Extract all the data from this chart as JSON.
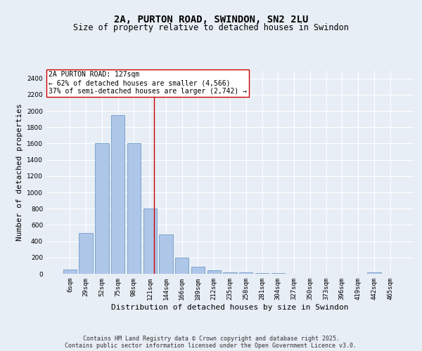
{
  "title1": "2A, PURTON ROAD, SWINDON, SN2 2LU",
  "title2": "Size of property relative to detached houses in Swindon",
  "xlabel": "Distribution of detached houses by size in Swindon",
  "ylabel": "Number of detached properties",
  "categories": [
    "6sqm",
    "29sqm",
    "52sqm",
    "75sqm",
    "98sqm",
    "121sqm",
    "144sqm",
    "166sqm",
    "189sqm",
    "212sqm",
    "235sqm",
    "258sqm",
    "281sqm",
    "304sqm",
    "327sqm",
    "350sqm",
    "373sqm",
    "396sqm",
    "419sqm",
    "442sqm",
    "465sqm"
  ],
  "values": [
    50,
    500,
    1600,
    1950,
    1600,
    800,
    480,
    200,
    90,
    40,
    20,
    15,
    8,
    5,
    3,
    2,
    1,
    1,
    0,
    20,
    0
  ],
  "bar_color": "#aec6e8",
  "bar_edge_color": "#5a8fc2",
  "vline_color": "#cc0000",
  "annotation_text": "2A PURTON ROAD: 127sqm\n← 62% of detached houses are smaller (4,566)\n37% of semi-detached houses are larger (2,742) →",
  "ylim_max": 2500,
  "yticks": [
    0,
    200,
    400,
    600,
    800,
    1000,
    1200,
    1400,
    1600,
    1800,
    2000,
    2200,
    2400
  ],
  "background_color": "#e8eef5",
  "grid_color": "#ffffff",
  "footer": "Contains HM Land Registry data © Crown copyright and database right 2025.\nContains public sector information licensed under the Open Government Licence v3.0.",
  "title_fontsize": 10,
  "subtitle_fontsize": 8.5,
  "axis_label_fontsize": 8,
  "tick_fontsize": 6.5,
  "footer_fontsize": 6,
  "annotation_fontsize": 7,
  "property_sqm": 127,
  "vline_pos": 5.26
}
